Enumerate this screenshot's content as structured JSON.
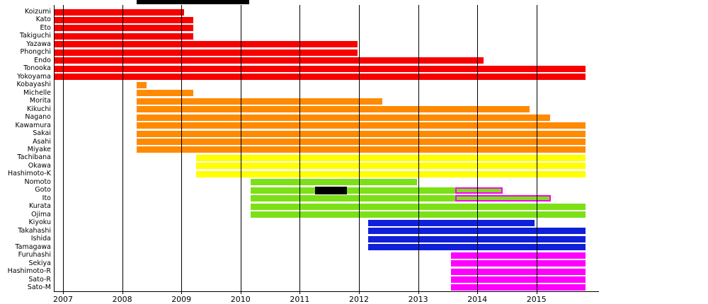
{
  "chart_data": {
    "type": "gantt",
    "title": "",
    "description": "Member tenure timeline chart (Gantt-style), one horizontal bar per member, colored by generation",
    "x_axis": {
      "tick_labels": [
        "2007",
        "2008",
        "2009",
        "2010",
        "2011",
        "2012",
        "2013",
        "2014",
        "2015"
      ],
      "tick_years": [
        2007,
        2008,
        2009,
        2010,
        2011,
        2012,
        2013,
        2014,
        2015
      ],
      "range_years": [
        2006.84,
        2016.05
      ],
      "grid": true
    },
    "chart_end_year": 2015.83,
    "colors": {
      "red": "#F70000",
      "orange": "#FF8A00",
      "yellow": "#FFFF00",
      "green": "#7CE017",
      "blue": "#1020D8",
      "magenta": "#FF00FF",
      "hiatus": "#000000",
      "axis": "#000000"
    },
    "legend_fragment": {
      "note": "partially cropped black bar at very top of image",
      "color": "#000000"
    },
    "members": [
      {
        "name": "Koizumi",
        "color": "red",
        "bars": [
          {
            "start": 2006.84,
            "end": 2009.05,
            "type": "solid"
          }
        ]
      },
      {
        "name": "Kato",
        "color": "red",
        "bars": [
          {
            "start": 2006.84,
            "end": 2009.2,
            "type": "solid"
          }
        ]
      },
      {
        "name": "Eto",
        "color": "red",
        "bars": [
          {
            "start": 2006.84,
            "end": 2009.2,
            "type": "solid"
          }
        ]
      },
      {
        "name": "Takiguchi",
        "color": "red",
        "bars": [
          {
            "start": 2006.84,
            "end": 2009.2,
            "type": "solid"
          }
        ]
      },
      {
        "name": "Yazawa",
        "color": "red",
        "bars": [
          {
            "start": 2006.84,
            "end": 2011.98,
            "type": "solid"
          }
        ]
      },
      {
        "name": "Phongchi",
        "color": "red",
        "bars": [
          {
            "start": 2006.84,
            "end": 2011.98,
            "type": "solid"
          }
        ]
      },
      {
        "name": "Endo",
        "color": "red",
        "bars": [
          {
            "start": 2006.84,
            "end": 2014.1,
            "type": "solid"
          }
        ]
      },
      {
        "name": "Tonooka",
        "color": "red",
        "bars": [
          {
            "start": 2006.84,
            "end": 2015.83,
            "type": "solid"
          }
        ]
      },
      {
        "name": "Yokoyama",
        "color": "red",
        "bars": [
          {
            "start": 2006.84,
            "end": 2015.83,
            "type": "solid"
          }
        ]
      },
      {
        "name": "Kobayashi",
        "color": "orange",
        "bars": [
          {
            "start": 2008.24,
            "end": 2008.41,
            "type": "solid"
          }
        ]
      },
      {
        "name": "Michelle",
        "color": "orange",
        "bars": [
          {
            "start": 2008.24,
            "end": 2009.2,
            "type": "solid"
          }
        ]
      },
      {
        "name": "Morita",
        "color": "orange",
        "bars": [
          {
            "start": 2008.24,
            "end": 2012.4,
            "type": "solid"
          }
        ]
      },
      {
        "name": "Kikuchi",
        "color": "orange",
        "bars": [
          {
            "start": 2008.24,
            "end": 2014.88,
            "type": "solid"
          }
        ]
      },
      {
        "name": "Nagano",
        "color": "orange",
        "bars": [
          {
            "start": 2008.24,
            "end": 2015.23,
            "type": "solid"
          }
        ]
      },
      {
        "name": "Kawamura",
        "color": "orange",
        "bars": [
          {
            "start": 2008.24,
            "end": 2015.83,
            "type": "solid"
          }
        ]
      },
      {
        "name": "Sakai",
        "color": "orange",
        "bars": [
          {
            "start": 2008.24,
            "end": 2015.83,
            "type": "solid"
          }
        ]
      },
      {
        "name": "Asahi",
        "color": "orange",
        "bars": [
          {
            "start": 2008.24,
            "end": 2015.83,
            "type": "solid"
          }
        ]
      },
      {
        "name": "Miyake",
        "color": "orange",
        "bars": [
          {
            "start": 2008.24,
            "end": 2015.83,
            "type": "solid"
          }
        ]
      },
      {
        "name": "Tachibana",
        "color": "yellow",
        "bars": [
          {
            "start": 2009.25,
            "end": 2015.83,
            "type": "solid"
          }
        ]
      },
      {
        "name": "Okawa",
        "color": "yellow",
        "bars": [
          {
            "start": 2009.25,
            "end": 2015.83,
            "type": "solid"
          }
        ]
      },
      {
        "name": "Hashimoto-K",
        "color": "yellow",
        "bars": [
          {
            "start": 2009.25,
            "end": 2015.83,
            "type": "solid"
          }
        ]
      },
      {
        "name": "Nomoto",
        "color": "green",
        "bars": [
          {
            "start": 2010.17,
            "end": 2012.98,
            "type": "solid"
          }
        ]
      },
      {
        "name": "Goto",
        "color": "green",
        "bars": [
          {
            "start": 2010.17,
            "end": 2013.63,
            "type": "solid"
          },
          {
            "start": 2011.26,
            "end": 2011.8,
            "type": "hiatus"
          },
          {
            "start": 2013.63,
            "end": 2014.43,
            "type": "outlined"
          }
        ]
      },
      {
        "name": "Ito",
        "color": "green",
        "bars": [
          {
            "start": 2010.17,
            "end": 2013.63,
            "type": "solid"
          },
          {
            "start": 2013.63,
            "end": 2015.24,
            "type": "outlined"
          }
        ]
      },
      {
        "name": "Kurata",
        "color": "green",
        "bars": [
          {
            "start": 2010.17,
            "end": 2015.83,
            "type": "solid"
          }
        ]
      },
      {
        "name": "Ojima",
        "color": "green",
        "bars": [
          {
            "start": 2010.17,
            "end": 2015.83,
            "type": "solid"
          }
        ]
      },
      {
        "name": "Kiyoku",
        "color": "blue",
        "bars": [
          {
            "start": 2012.16,
            "end": 2014.97,
            "type": "solid"
          }
        ]
      },
      {
        "name": "Takahashi",
        "color": "blue",
        "bars": [
          {
            "start": 2012.16,
            "end": 2015.83,
            "type": "solid"
          }
        ]
      },
      {
        "name": "Ishida",
        "color": "blue",
        "bars": [
          {
            "start": 2012.16,
            "end": 2015.83,
            "type": "solid"
          }
        ]
      },
      {
        "name": "Tamagawa",
        "color": "blue",
        "bars": [
          {
            "start": 2012.16,
            "end": 2015.83,
            "type": "solid"
          }
        ]
      },
      {
        "name": "Furuhashi",
        "color": "magenta",
        "bars": [
          {
            "start": 2013.56,
            "end": 2015.83,
            "type": "solid"
          }
        ]
      },
      {
        "name": "Sekiya",
        "color": "magenta",
        "bars": [
          {
            "start": 2013.56,
            "end": 2015.83,
            "type": "solid"
          }
        ]
      },
      {
        "name": "Hashimoto-R",
        "color": "magenta",
        "bars": [
          {
            "start": 2013.56,
            "end": 2015.83,
            "type": "solid"
          }
        ]
      },
      {
        "name": "Sato-R",
        "color": "magenta",
        "bars": [
          {
            "start": 2013.56,
            "end": 2015.83,
            "type": "solid"
          }
        ]
      },
      {
        "name": "Sato-M",
        "color": "magenta",
        "bars": [
          {
            "start": 2013.56,
            "end": 2015.83,
            "type": "solid"
          }
        ]
      }
    ]
  }
}
